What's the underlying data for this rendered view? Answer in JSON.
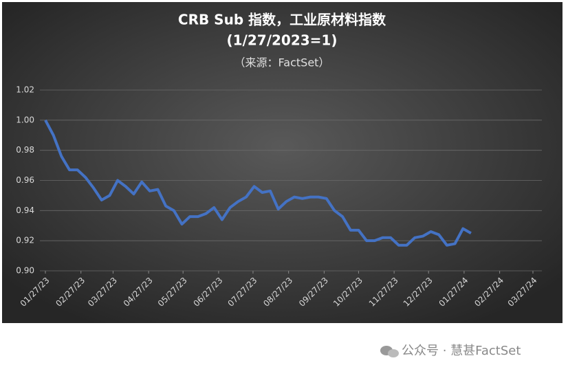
{
  "chart_data": {
    "type": "line",
    "title": "CRB Sub 指数，工业原材料指数",
    "subtitle": "(1/27/2023=1)",
    "source": "（来源：FactSet）",
    "x": [
      "01/27/23",
      "02/03/23",
      "02/10/23",
      "02/17/23",
      "02/24/23",
      "03/03/23",
      "03/10/23",
      "03/17/23",
      "03/24/23",
      "03/31/23",
      "04/07/23",
      "04/14/23",
      "04/21/23",
      "04/28/23",
      "05/05/23",
      "05/12/23",
      "05/19/23",
      "05/26/23",
      "06/02/23",
      "06/09/23",
      "06/16/23",
      "06/23/23",
      "06/30/23",
      "07/07/23",
      "07/14/23",
      "07/21/23",
      "07/28/23",
      "08/04/23",
      "08/11/23",
      "08/18/23",
      "08/25/23",
      "09/01/23",
      "09/08/23",
      "09/15/23",
      "09/22/23",
      "09/29/23",
      "10/06/23",
      "10/13/23",
      "10/20/23",
      "10/27/23",
      "11/03/23",
      "11/10/23",
      "11/17/23",
      "11/24/23",
      "12/01/23",
      "12/08/23",
      "12/15/23",
      "12/22/23",
      "12/29/23",
      "01/05/24",
      "01/12/24",
      "01/19/24",
      "01/26/24",
      "02/02/24"
    ],
    "series": [
      {
        "name": "CRB Sub",
        "color": "#4472c4",
        "values": [
          1.0,
          0.99,
          0.976,
          0.967,
          0.967,
          0.962,
          0.955,
          0.947,
          0.95,
          0.96,
          0.956,
          0.951,
          0.959,
          0.953,
          0.954,
          0.943,
          0.94,
          0.931,
          0.936,
          0.936,
          0.938,
          0.942,
          0.934,
          0.942,
          0.946,
          0.949,
          0.956,
          0.952,
          0.953,
          0.941,
          0.946,
          0.949,
          0.948,
          0.949,
          0.949,
          0.948,
          0.94,
          0.936,
          0.927,
          0.927,
          0.92,
          0.92,
          0.922,
          0.922,
          0.917,
          0.917,
          0.922,
          0.923,
          0.926,
          0.924,
          0.917,
          0.918,
          0.928,
          0.925
        ]
      }
    ],
    "xlim": [
      "01/27/23",
      "03/27/24"
    ],
    "xticks": [
      "01/27/23",
      "02/27/23",
      "03/27/23",
      "04/27/23",
      "05/27/23",
      "06/27/23",
      "07/27/23",
      "08/27/23",
      "09/27/23",
      "10/27/23",
      "11/27/23",
      "12/27/23",
      "01/27/24",
      "02/27/24",
      "03/27/24"
    ],
    "ylim": [
      0.9,
      1.02
    ],
    "yticks": [
      {
        "value": 0.9,
        "label": "0.90"
      },
      {
        "value": 0.92,
        "label": "0.92"
      },
      {
        "value": 0.94,
        "label": "0.94"
      },
      {
        "value": 0.96,
        "label": "0.96"
      },
      {
        "value": 0.98,
        "label": "0.98"
      },
      {
        "value": 1.0,
        "label": "1.00"
      },
      {
        "value": 1.02,
        "label": "1.02"
      }
    ],
    "grid": true
  },
  "watermark": "公众号 · 慧甚FactSet"
}
